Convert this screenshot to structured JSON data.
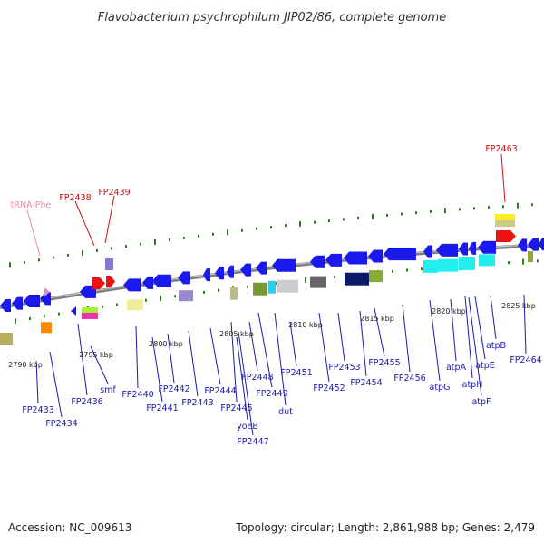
{
  "title": "Flavobacterium psychrophilum JIP02/86, complete genome",
  "footer": {
    "accession": "Accession: NC_009613",
    "topology": "Topology: circular; Length: 2,861,988 bp; Genes: 2,479"
  },
  "colors": {
    "backbone": "#7a7a7a",
    "tick": "#2e7d1e",
    "cds": "#1a1aee",
    "label_blue": "#1a1aa8",
    "label_red": "#cc1111",
    "label_pink": "#ee88aa",
    "label_connector_red": "#cc1111"
  },
  "kbp_labels": [
    "2790 kbp",
    "2795 kbp",
    "2800 kbp",
    "2805 kbp",
    "2810 kbp",
    "2815 kbp",
    "2820 kbp",
    "2825 kbp"
  ],
  "upper_labels": [
    {
      "text": "tRNA-Phe",
      "color": "pink"
    },
    {
      "text": "FP2438",
      "color": "red"
    },
    {
      "text": "FP2439",
      "color": "red"
    },
    {
      "text": "FP2463",
      "color": "red"
    }
  ],
  "lower_labels": [
    "FP2433",
    "FP2434",
    "FP2436",
    "smf",
    "FP2440",
    "FP2441",
    "FP2442",
    "FP2443",
    "FP2444",
    "FP2445",
    "yoeB",
    "FP2447",
    "FP2448",
    "FP2449",
    "dut",
    "FP2451",
    "FP2452",
    "FP2453",
    "FP2454",
    "FP2455",
    "FP2456",
    "atpG",
    "atpA",
    "atpH",
    "atpE",
    "atpF",
    "atpB",
    "FP2464"
  ]
}
